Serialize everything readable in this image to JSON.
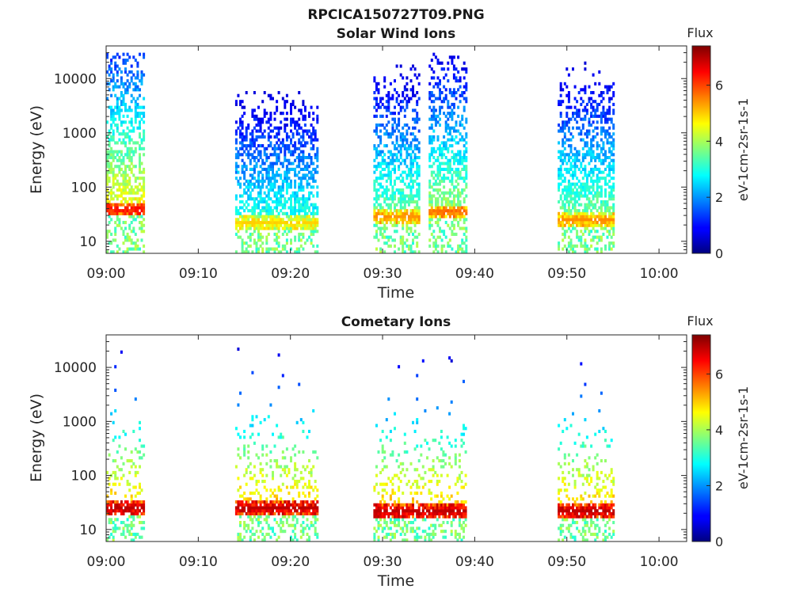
{
  "figure": {
    "title": "RPCICA150727T09.PNG"
  },
  "chart_data": [
    {
      "type": "heatmap",
      "title": "Solar Wind Ions",
      "xlabel": "Time",
      "ylabel": "Energy (eV)",
      "yscale": "log",
      "ylim": [
        6,
        40000
      ],
      "xlim": [
        "09:00",
        "10:03"
      ],
      "xticks": [
        "09:00",
        "09:10",
        "09:20",
        "09:30",
        "09:40",
        "09:50",
        "10:00"
      ],
      "yticks": [
        10,
        100,
        1000,
        10000
      ],
      "ytick_labels": [
        "10",
        "100",
        "1000",
        "10000"
      ],
      "colorbar": {
        "label": "Flux",
        "unit_label": "eV-1cm-2sr-1s-1",
        "range": [
          0,
          7.4
        ],
        "ticks": [
          "0",
          "2",
          "4",
          "6"
        ]
      },
      "active_intervals": [
        {
          "start": "09:00",
          "end": "09:04",
          "peak_energy": 40,
          "peak_flux": 6.5
        },
        {
          "start": "09:14",
          "end": "09:23",
          "peak_energy": 22,
          "peak_flux": 5.0
        },
        {
          "start": "09:29",
          "end": "09:34",
          "peak_energy": 28,
          "peak_flux": 5.5
        },
        {
          "start": "09:35",
          "end": "09:39",
          "peak_energy": 35,
          "peak_flux": 5.8
        },
        {
          "start": "09:49",
          "end": "09:55",
          "peak_energy": 25,
          "peak_flux": 5.5
        }
      ]
    },
    {
      "type": "heatmap",
      "title": "Cometary Ions",
      "xlabel": "Time",
      "ylabel": "Energy (eV)",
      "yscale": "log",
      "ylim": [
        6,
        40000
      ],
      "xlim": [
        "09:00",
        "10:03"
      ],
      "xticks": [
        "09:00",
        "09:10",
        "09:20",
        "09:30",
        "09:40",
        "09:50",
        "10:00"
      ],
      "yticks": [
        10,
        100,
        1000,
        10000
      ],
      "ytick_labels": [
        "10",
        "100",
        "1000",
        "10000"
      ],
      "colorbar": {
        "label": "Flux",
        "unit_label": "eV-1cm-2sr-1s-1",
        "range": [
          0,
          7.4
        ],
        "ticks": [
          "0",
          "2",
          "4",
          "6"
        ]
      },
      "active_intervals": [
        {
          "start": "09:00",
          "end": "09:04",
          "peak_energy": 25,
          "peak_flux": 7.0
        },
        {
          "start": "09:14",
          "end": "09:23",
          "peak_energy": 25,
          "peak_flux": 7.0
        },
        {
          "start": "09:29",
          "end": "09:39",
          "peak_energy": 22,
          "peak_flux": 7.0
        },
        {
          "start": "09:49",
          "end": "09:55",
          "peak_energy": 22,
          "peak_flux": 7.0
        }
      ]
    }
  ]
}
